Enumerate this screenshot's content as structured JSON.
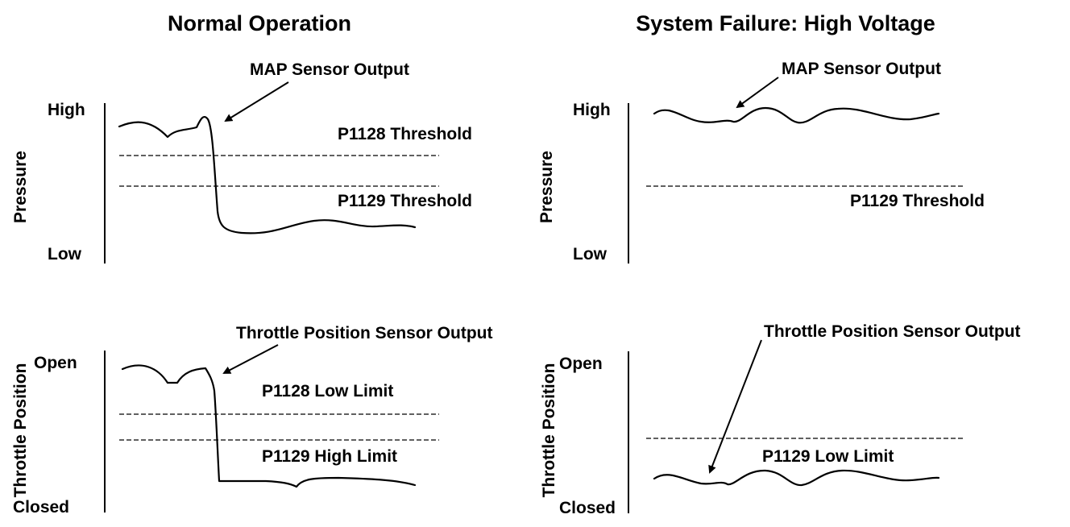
{
  "titles": {
    "left": "Normal Operation",
    "right": "System Failure: High Voltage"
  },
  "pressure_axis": {
    "title": "Pressure",
    "high": "High",
    "low": "Low"
  },
  "throttle_axis": {
    "title": "Throttle Position",
    "open": "Open",
    "closed": "Closed"
  },
  "labels": {
    "map_output": "MAP Sensor Output",
    "tps_output": "Throttle Position Sensor Output",
    "p1128_threshold": "P1128 Threshold",
    "p1129_threshold": "P1129 Threshold",
    "p1128_low_limit": "P1128 Low Limit",
    "p1129_high_limit": "P1129 High Limit",
    "p1129_low_limit": "P1129 Low Limit"
  }
}
